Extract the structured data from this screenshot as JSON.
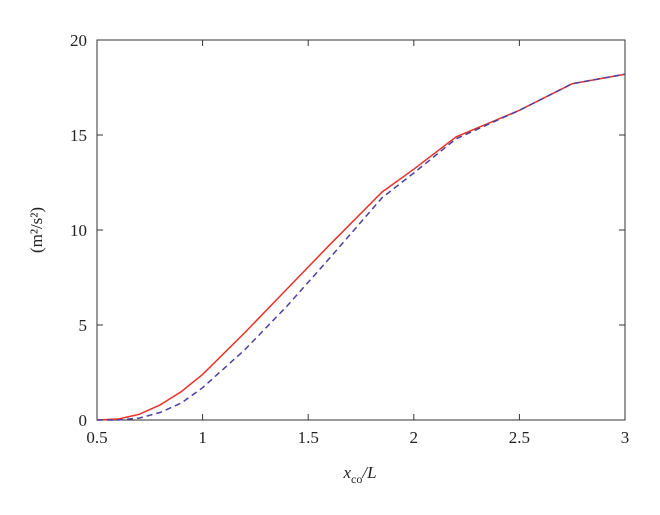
{
  "chart_data": {
    "type": "line",
    "xlabel": [
      "x",
      "co",
      "/L"
    ],
    "ylabel": "(m²/s²)",
    "x": [
      0.5,
      0.6,
      0.7,
      0.8,
      0.9,
      1.0,
      1.2,
      1.4,
      1.6,
      1.85,
      2.0,
      2.2,
      2.5,
      2.75,
      3.0
    ],
    "series": [
      {
        "color": "#e8312a",
        "dash": false,
        "values": [
          0,
          0.05,
          0.3,
          0.8,
          1.5,
          2.4,
          4.6,
          6.9,
          9.2,
          12.0,
          13.2,
          14.9,
          16.3,
          17.7,
          18.2
        ]
      },
      {
        "color": "#4b3fa0",
        "dash": true,
        "values": [
          0,
          0.0,
          0.1,
          0.4,
          0.9,
          1.7,
          3.7,
          6.0,
          8.5,
          11.7,
          13.0,
          14.8,
          16.3,
          17.7,
          18.2
        ]
      }
    ],
    "xlim": [
      0.5,
      3
    ],
    "ylim": [
      0,
      20
    ],
    "xticks": [
      0.5,
      1,
      1.5,
      2,
      2.5,
      3
    ],
    "yticks": [
      0,
      5,
      10,
      15,
      20
    ]
  }
}
